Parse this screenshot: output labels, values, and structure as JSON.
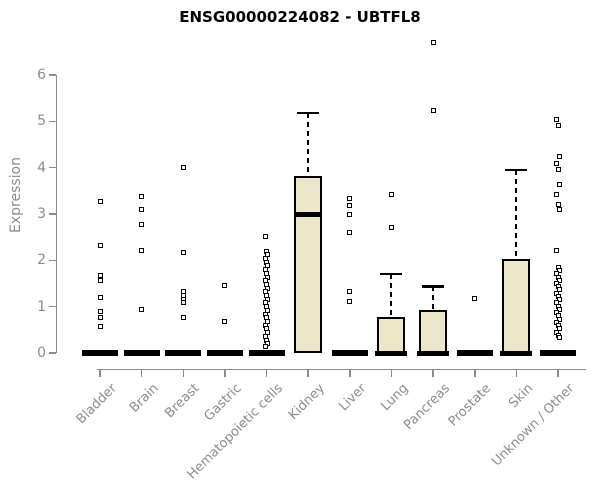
{
  "title": "ENSG00000224082 - UBTFL8",
  "chart_data": {
    "type": "boxplot",
    "title": "ENSG00000224082 - UBTFL8",
    "xlabel": "",
    "ylabel": "Expression",
    "ylim": [
      0,
      6.8
    ],
    "yticks": [
      0,
      1,
      2,
      3,
      4,
      5,
      6
    ],
    "grid": false,
    "legend": "none",
    "box_fill_color": "#EDE7CA",
    "box_border_color": "#000000",
    "axis_color": "#8C8C8C",
    "title_color": "#000000",
    "categories": [
      "Bladder",
      "Brain",
      "Breast",
      "Gastric",
      "Hematopoietic cells",
      "Kidney",
      "Liver",
      "Lung",
      "Pancreas",
      "Prostate",
      "Skin",
      "Unknown / Other"
    ],
    "series": [
      {
        "name": "Bladder",
        "q1": 0,
        "median": 0,
        "q3": 0,
        "whisker_high": 0,
        "collapsed": true,
        "outliers": [
          3.27,
          2.31,
          1.67,
          1.56,
          1.2,
          0.9,
          0.76,
          0.58
        ]
      },
      {
        "name": "Brain",
        "q1": 0,
        "median": 0,
        "q3": 0,
        "whisker_high": 0,
        "collapsed": true,
        "outliers": [
          3.37,
          3.1,
          2.78,
          2.22,
          0.93
        ]
      },
      {
        "name": "Breast",
        "q1": 0,
        "median": 0,
        "q3": 0,
        "whisker_high": 0,
        "collapsed": true,
        "outliers": [
          4.01,
          2.17,
          1.33,
          1.24,
          1.16,
          1.08,
          0.76
        ]
      },
      {
        "name": "Gastric",
        "q1": 0,
        "median": 0,
        "q3": 0,
        "whisker_high": 0,
        "collapsed": true,
        "outliers": [
          1.45,
          0.67
        ]
      },
      {
        "name": "Hematopoietic cells",
        "q1": 0,
        "median": 0,
        "q3": 0,
        "whisker_high": 0,
        "collapsed": true,
        "outliers": [
          2.51,
          2.2,
          2.12,
          2.04,
          1.96,
          1.88,
          1.8,
          1.72,
          1.64,
          1.56,
          1.48,
          1.4,
          1.32,
          1.24,
          1.16,
          1.08,
          1.0,
          0.92,
          0.84,
          0.76,
          0.68,
          0.6,
          0.52,
          0.44,
          0.36,
          0.28,
          0.2,
          0.15
        ]
      },
      {
        "name": "Kidney",
        "q1": 0,
        "median": 3.0,
        "q3": 3.82,
        "whisker_high": 5.18,
        "collapsed": false,
        "outliers": []
      },
      {
        "name": "Liver",
        "q1": 0,
        "median": 0,
        "q3": 0,
        "whisker_high": 0,
        "collapsed": true,
        "outliers": [
          3.33,
          3.18,
          3.0,
          2.61,
          1.32,
          1.11
        ]
      },
      {
        "name": "Lung",
        "q1": 0,
        "median": 0,
        "q3": 0.78,
        "whisker_high": 1.71,
        "collapsed": false,
        "outliers": [
          3.43,
          2.71
        ]
      },
      {
        "name": "Pancreas",
        "q1": 0,
        "median": 0,
        "q3": 0.92,
        "whisker_high": 1.44,
        "collapsed": false,
        "outliers": [
          6.7,
          5.24
        ]
      },
      {
        "name": "Prostate",
        "q1": 0,
        "median": 0,
        "q3": 0,
        "whisker_high": 0,
        "collapsed": true,
        "outliers": [
          1.17
        ]
      },
      {
        "name": "Skin",
        "q1": 0,
        "median": 0,
        "q3": 2.02,
        "whisker_high": 3.95,
        "collapsed": false,
        "outliers": []
      },
      {
        "name": "Unknown / Other",
        "q1": 0,
        "median": 0,
        "q3": 0,
        "whisker_high": 0,
        "collapsed": true,
        "outliers": [
          5.05,
          4.92,
          4.24,
          4.08,
          3.95,
          3.63,
          3.43,
          3.21,
          3.09,
          2.22,
          1.85,
          1.78,
          1.71,
          1.64,
          1.57,
          1.5,
          1.43,
          1.36,
          1.29,
          1.22,
          1.15,
          1.08,
          1.01,
          0.94,
          0.87,
          0.8,
          0.73,
          0.66,
          0.59,
          0.52,
          0.45,
          0.38,
          0.33
        ]
      }
    ]
  }
}
